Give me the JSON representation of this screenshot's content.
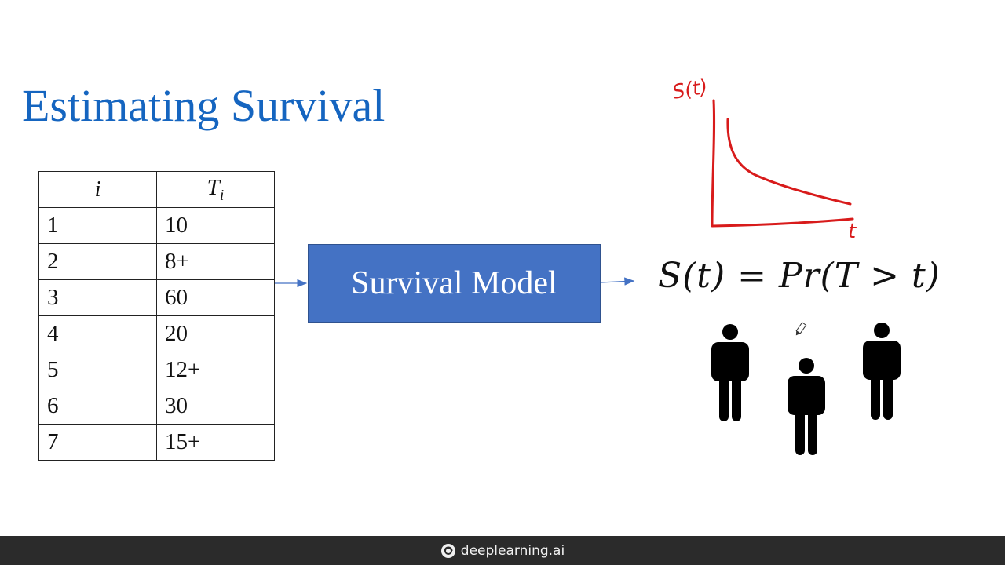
{
  "slide": {
    "title": "Estimating Survival",
    "table": {
      "headers": {
        "index": "i",
        "time": "T",
        "time_sub": "i"
      },
      "rows": [
        {
          "i": "1",
          "t": "10"
        },
        {
          "i": "2",
          "t": "8+"
        },
        {
          "i": "3",
          "t": "60"
        },
        {
          "i": "4",
          "t": "20"
        },
        {
          "i": "5",
          "t": "12+"
        },
        {
          "i": "6",
          "t": "30"
        },
        {
          "i": "7",
          "t": "15+"
        }
      ]
    },
    "model_label": "Survival Model",
    "formula": "S(t) = Pr(T > t)",
    "sketch": {
      "y_label": "S(t)",
      "x_label": "t",
      "ink_color": "#d81b1b"
    },
    "people_count": 3
  },
  "footer": {
    "brand": "deeplearning.ai",
    "icon": "deeplearning-logo-icon"
  },
  "colors": {
    "title": "#1565c0",
    "model_box": "#4472c4",
    "footer_bg": "#2b2b2b",
    "arrow": "#4472c4"
  }
}
